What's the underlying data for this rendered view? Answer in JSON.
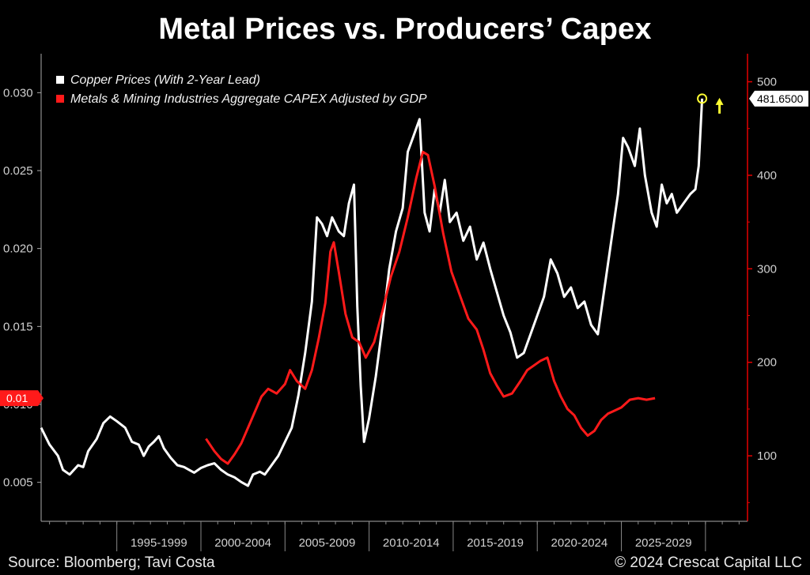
{
  "title": "Metal Prices vs. Producers’ Capex",
  "footer": {
    "source": "Source: Bloomberg; Tavi Costa",
    "copyright": "© 2024 Crescat Capital LLC"
  },
  "colors": {
    "copper": "#ffffff",
    "capex": "#ff1a1a",
    "right_axis": "#e60000",
    "marker": "#ffff33",
    "background": "#000000"
  },
  "chart_data": {
    "type": "line",
    "title": "Metal Prices vs. Producers’ Capex",
    "left_axis": {
      "ticks": [
        0.005,
        0.01,
        0.015,
        0.02,
        0.025,
        0.03
      ],
      "tick_labels": [
        "0.005",
        "0.010",
        "0.015",
        "0.020",
        "0.025",
        "0.030"
      ],
      "range": [
        0.0025,
        0.0325
      ],
      "value_flag": "0.01"
    },
    "right_axis": {
      "ticks": [
        100,
        200,
        300,
        400,
        500
      ],
      "range": [
        30,
        530
      ],
      "value_flag": "481.6500"
    },
    "x_axis": {
      "range": [
        1990.5,
        2032.5
      ],
      "categories": [
        "1995-1999",
        "2000-2004",
        "2005-2009",
        "2010-2014",
        "2015-2019",
        "2020-2024",
        "2025-2029"
      ],
      "category_bounds": [
        1995,
        2000,
        2005,
        2010,
        2015,
        2020,
        2025,
        2030
      ]
    },
    "legend_placement": "top-left",
    "series": [
      {
        "name": "Copper Prices (With 2-Year Lead)",
        "axis": "right",
        "color": "#ffffff",
        "points": [
          [
            1990.5,
            130
          ],
          [
            1991.0,
            112
          ],
          [
            1991.5,
            100
          ],
          [
            1991.8,
            85
          ],
          [
            1992.2,
            80
          ],
          [
            1992.7,
            90
          ],
          [
            1993.0,
            88
          ],
          [
            1993.3,
            105
          ],
          [
            1993.8,
            118
          ],
          [
            1994.2,
            135
          ],
          [
            1994.6,
            142
          ],
          [
            1995.0,
            137
          ],
          [
            1995.5,
            130
          ],
          [
            1995.9,
            115
          ],
          [
            1996.3,
            112
          ],
          [
            1996.6,
            100
          ],
          [
            1996.9,
            110
          ],
          [
            1997.2,
            115
          ],
          [
            1997.5,
            121
          ],
          [
            1997.8,
            108
          ],
          [
            1998.2,
            98
          ],
          [
            1998.6,
            90
          ],
          [
            1999.0,
            88
          ],
          [
            1999.3,
            85
          ],
          [
            1999.6,
            82
          ],
          [
            2000.0,
            87
          ],
          [
            2000.4,
            90
          ],
          [
            2000.8,
            92
          ],
          [
            2001.2,
            85
          ],
          [
            2001.6,
            80
          ],
          [
            2002.0,
            77
          ],
          [
            2002.4,
            72
          ],
          [
            2002.8,
            68
          ],
          [
            2003.1,
            80
          ],
          [
            2003.5,
            83
          ],
          [
            2003.8,
            80
          ],
          [
            2004.2,
            90
          ],
          [
            2004.6,
            100
          ],
          [
            2005.0,
            115
          ],
          [
            2005.4,
            130
          ],
          [
            2005.8,
            165
          ],
          [
            2006.2,
            210
          ],
          [
            2006.6,
            265
          ],
          [
            2006.9,
            355
          ],
          [
            2007.2,
            348
          ],
          [
            2007.5,
            335
          ],
          [
            2007.8,
            355
          ],
          [
            2008.2,
            340
          ],
          [
            2008.5,
            335
          ],
          [
            2008.8,
            370
          ],
          [
            2009.1,
            390
          ],
          [
            2009.3,
            260
          ],
          [
            2009.5,
            175
          ],
          [
            2009.7,
            115
          ],
          [
            2010.0,
            140
          ],
          [
            2010.4,
            185
          ],
          [
            2010.8,
            240
          ],
          [
            2011.2,
            300
          ],
          [
            2011.6,
            340
          ],
          [
            2012.0,
            365
          ],
          [
            2012.3,
            425
          ],
          [
            2012.6,
            440
          ],
          [
            2013.0,
            460
          ],
          [
            2013.3,
            360
          ],
          [
            2013.6,
            340
          ],
          [
            2013.9,
            385
          ],
          [
            2014.2,
            360
          ],
          [
            2014.5,
            395
          ],
          [
            2014.8,
            350
          ],
          [
            2015.2,
            360
          ],
          [
            2015.6,
            330
          ],
          [
            2016.0,
            345
          ],
          [
            2016.4,
            310
          ],
          [
            2016.8,
            328
          ],
          [
            2017.2,
            300
          ],
          [
            2017.6,
            275
          ],
          [
            2018.0,
            250
          ],
          [
            2018.4,
            232
          ],
          [
            2018.8,
            205
          ],
          [
            2019.2,
            210
          ],
          [
            2019.6,
            230
          ],
          [
            2020.0,
            250
          ],
          [
            2020.4,
            270
          ],
          [
            2020.8,
            310
          ],
          [
            2021.2,
            295
          ],
          [
            2021.6,
            270
          ],
          [
            2022.0,
            280
          ],
          [
            2022.4,
            258
          ],
          [
            2022.8,
            265
          ],
          [
            2023.2,
            240
          ],
          [
            2023.6,
            230
          ],
          [
            2024.0,
            280
          ],
          [
            2024.4,
            330
          ],
          [
            2024.8,
            380
          ],
          [
            2025.1,
            440
          ],
          [
            2025.4,
            430
          ],
          [
            2025.8,
            410
          ],
          [
            2026.1,
            450
          ],
          [
            2026.4,
            400
          ],
          [
            2026.8,
            360
          ],
          [
            2027.1,
            345
          ],
          [
            2027.4,
            390
          ],
          [
            2027.7,
            370
          ],
          [
            2028.0,
            380
          ],
          [
            2028.3,
            360
          ],
          [
            2028.7,
            370
          ],
          [
            2029.1,
            380
          ],
          [
            2029.4,
            385
          ],
          [
            2029.6,
            410
          ],
          [
            2029.8,
            482
          ]
        ]
      },
      {
        "name": "Metals & Mining Industries Aggregate CAPEX Adjusted by GDP",
        "axis": "left",
        "color": "#ff1a1a",
        "points": [
          [
            2000.3,
            0.0078
          ],
          [
            2000.8,
            0.007
          ],
          [
            2001.2,
            0.0065
          ],
          [
            2001.6,
            0.0062
          ],
          [
            2002.0,
            0.0068
          ],
          [
            2002.4,
            0.0075
          ],
          [
            2002.8,
            0.0085
          ],
          [
            2003.2,
            0.0095
          ],
          [
            2003.6,
            0.0105
          ],
          [
            2004.0,
            0.011
          ],
          [
            2004.5,
            0.0107
          ],
          [
            2005.0,
            0.0113
          ],
          [
            2005.3,
            0.0122
          ],
          [
            2005.7,
            0.0115
          ],
          [
            2006.2,
            0.011
          ],
          [
            2006.6,
            0.0122
          ],
          [
            2007.0,
            0.0142
          ],
          [
            2007.4,
            0.0165
          ],
          [
            2007.7,
            0.0198
          ],
          [
            2007.9,
            0.0204
          ],
          [
            2008.2,
            0.0185
          ],
          [
            2008.6,
            0.0158
          ],
          [
            2009.0,
            0.0143
          ],
          [
            2009.4,
            0.014
          ],
          [
            2009.8,
            0.013
          ],
          [
            2010.3,
            0.014
          ],
          [
            2010.8,
            0.016
          ],
          [
            2011.3,
            0.0182
          ],
          [
            2011.8,
            0.0198
          ],
          [
            2012.3,
            0.022
          ],
          [
            2012.8,
            0.0245
          ],
          [
            2013.2,
            0.0262
          ],
          [
            2013.5,
            0.026
          ],
          [
            2013.9,
            0.024
          ],
          [
            2014.4,
            0.021
          ],
          [
            2014.9,
            0.0185
          ],
          [
            2015.4,
            0.017
          ],
          [
            2015.9,
            0.0155
          ],
          [
            2016.4,
            0.0148
          ],
          [
            2016.8,
            0.0135
          ],
          [
            2017.2,
            0.012
          ],
          [
            2017.6,
            0.0112
          ],
          [
            2018.0,
            0.0105
          ],
          [
            2018.5,
            0.0107
          ],
          [
            2019.0,
            0.0115
          ],
          [
            2019.4,
            0.0122
          ],
          [
            2019.8,
            0.0125
          ],
          [
            2020.2,
            0.0128
          ],
          [
            2020.6,
            0.013
          ],
          [
            2021.0,
            0.0115
          ],
          [
            2021.4,
            0.0105
          ],
          [
            2021.8,
            0.0097
          ],
          [
            2022.2,
            0.0093
          ],
          [
            2022.6,
            0.0085
          ],
          [
            2023.0,
            0.008
          ],
          [
            2023.4,
            0.0083
          ],
          [
            2023.8,
            0.009
          ],
          [
            2024.2,
            0.0094
          ],
          [
            2024.6,
            0.0096
          ],
          [
            2025.0,
            0.0098
          ],
          [
            2025.5,
            0.0103
          ],
          [
            2026.0,
            0.0104
          ],
          [
            2026.5,
            0.0103
          ],
          [
            2027.0,
            0.0104
          ]
        ]
      }
    ]
  }
}
